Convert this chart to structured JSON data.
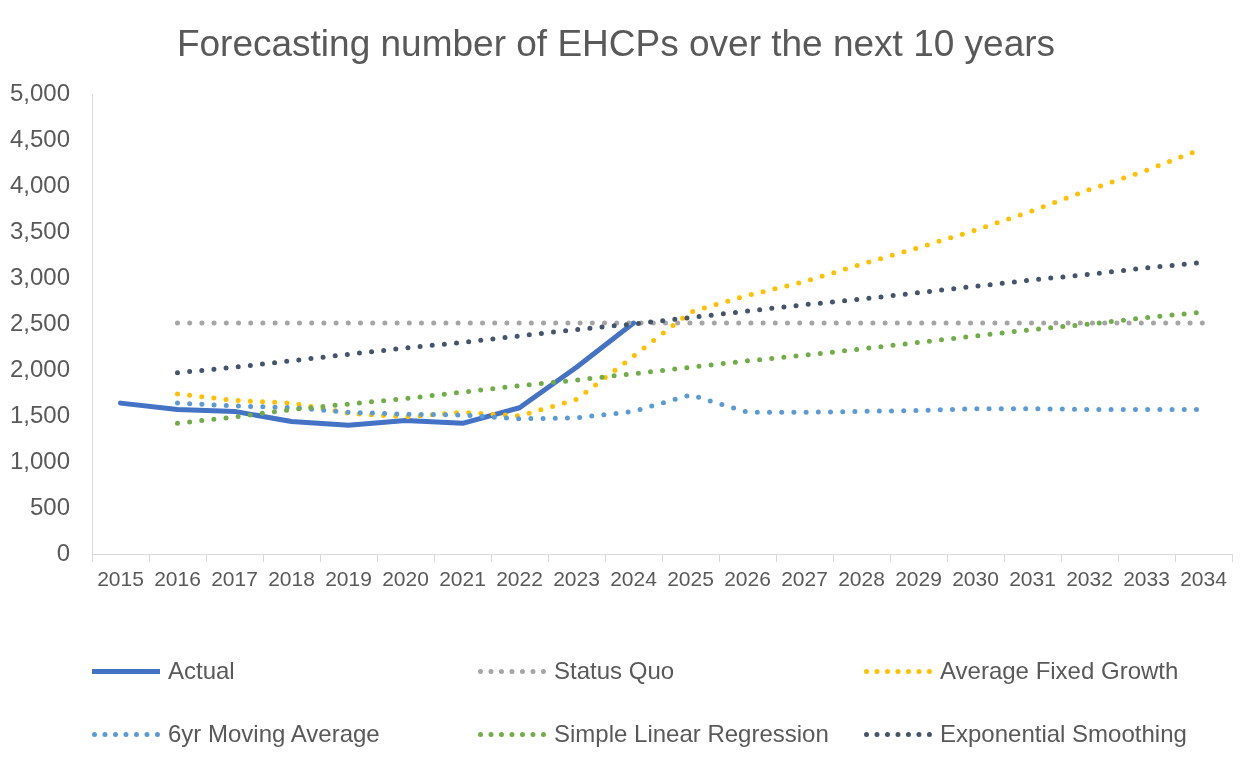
{
  "chart_data": {
    "type": "line",
    "title": "Forecasting number of EHCPs over the next 10 years",
    "categories": [
      "2015",
      "2016",
      "2017",
      "2018",
      "2019",
      "2020",
      "2021",
      "2022",
      "2023",
      "2024",
      "2025",
      "2026",
      "2027",
      "2028",
      "2029",
      "2030",
      "2031",
      "2032",
      "2033",
      "2034"
    ],
    "series": [
      {
        "name": "Actual",
        "color": "#4472c4",
        "line_style": "solid",
        "values": [
          1640,
          1570,
          1550,
          1440,
          1400,
          1450,
          1420,
          1590,
          2030,
          2510,
          null,
          null,
          null,
          null,
          null,
          null,
          null,
          null,
          null,
          null
        ]
      },
      {
        "name": "Status Quo",
        "color": "#a5a5a5",
        "line_style": "dotted",
        "values": [
          null,
          2510,
          2510,
          2510,
          2510,
          2510,
          2510,
          2510,
          2510,
          2510,
          2510,
          2510,
          2510,
          2510,
          2510,
          2510,
          2510,
          2510,
          2510,
          2510
        ]
      },
      {
        "name": "Average Fixed Growth",
        "color": "#ffc000",
        "line_style": "dotted",
        "values": [
          null,
          1740,
          1670,
          1640,
          1530,
          1490,
          1540,
          1500,
          1680,
          2150,
          2630,
          2810,
          2960,
          3150,
          3330,
          3520,
          3730,
          3960,
          4170,
          4410
        ]
      },
      {
        "name": "6yr Moving Average",
        "color": "#5b9bd5",
        "line_style": "dotted",
        "values": [
          null,
          1640,
          1610,
          1590,
          1540,
          1520,
          1510,
          1470,
          1480,
          1550,
          1730,
          1540,
          1540,
          1550,
          1560,
          1580,
          1580,
          1570,
          1570,
          1570
        ]
      },
      {
        "name": "Simple Linear Regression",
        "color": "#70ad47",
        "line_style": "dotted",
        "values": [
          null,
          1420,
          1490,
          1570,
          1630,
          1690,
          1760,
          1830,
          1890,
          1960,
          2030,
          2100,
          2160,
          2230,
          2300,
          2370,
          2440,
          2500,
          2570,
          2630
        ]
      },
      {
        "name": "Exponential Smoothing",
        "color": "#44546a",
        "line_style": "dotted",
        "values": [
          null,
          1970,
          2030,
          2100,
          2170,
          2240,
          2300,
          2370,
          2440,
          2500,
          2570,
          2640,
          2710,
          2770,
          2840,
          2910,
          2980,
          3040,
          3110,
          3170
        ]
      }
    ],
    "ylim": [
      0,
      5000
    ],
    "yticks": [
      0,
      500,
      {
        "value": 1000,
        "label": "1,000"
      },
      {
        "value": 1500,
        "label": "1,500"
      },
      {
        "value": 2000,
        "label": "2,000"
      },
      {
        "value": 2500,
        "label": "2,500"
      },
      {
        "value": 3000,
        "label": "3,000"
      },
      {
        "value": 3500,
        "label": "3,500"
      },
      {
        "value": 4000,
        "label": "4,000"
      },
      {
        "value": 4500,
        "label": "4,500"
      },
      {
        "value": 5000,
        "label": "5,000"
      }
    ],
    "legend": "bottom"
  }
}
